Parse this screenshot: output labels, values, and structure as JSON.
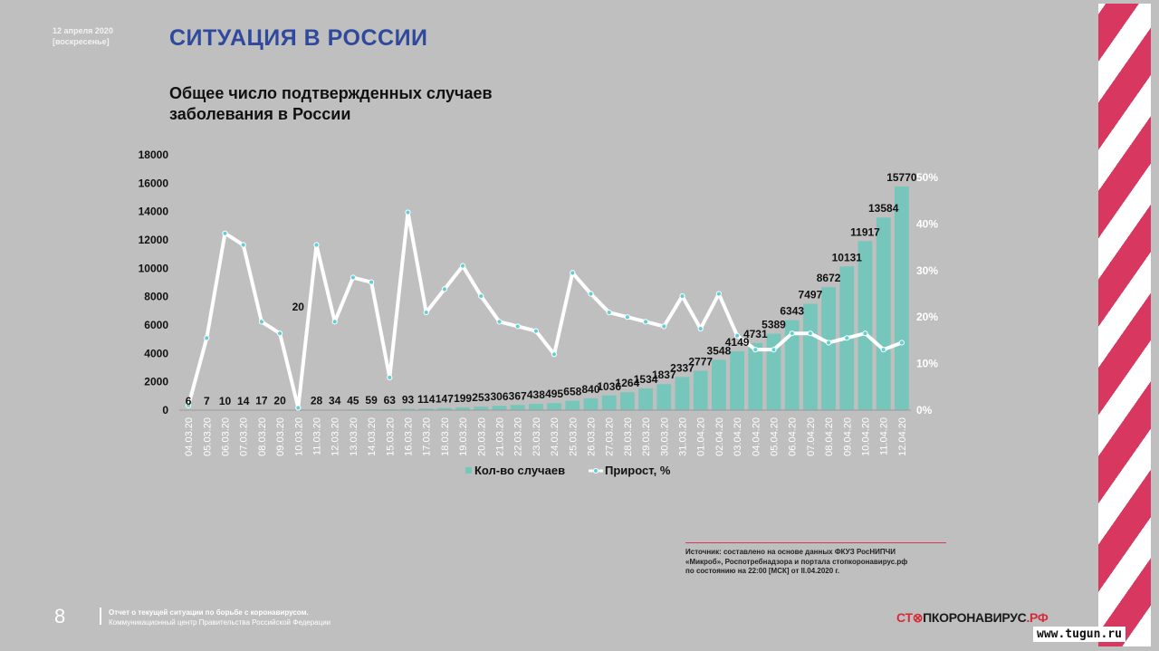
{
  "header": {
    "date_line1": "12 апреля 2020",
    "date_line2": "[воскресенье]",
    "title": "СИТУАЦИЯ В РОССИИ"
  },
  "chart_title_line1": "Общее число подтвержденных случаев",
  "chart_title_line2": "заболевания в России",
  "chart_data": {
    "type": "bar",
    "title": "Общее число подтвержденных случаев заболевания в России",
    "categories": [
      "04.03.20",
      "05.03.20",
      "06.03.20",
      "07.03.20",
      "08.03.20",
      "09.03.20",
      "10.03.20",
      "11.03.20",
      "12.03.20",
      "13.03.20",
      "14.03.20",
      "15.03.20",
      "16.03.20",
      "17.03.20",
      "18.03.20",
      "19.03.20",
      "20.03.20",
      "21.03.20",
      "22.03.20",
      "23.03.20",
      "24.03.20",
      "25.03.20",
      "26.03.20",
      "27.03.20",
      "28.03.20",
      "29.03.20",
      "30.03.20",
      "31.03.20",
      "01.04.20",
      "02.04.20",
      "03.04.20",
      "04.04.20",
      "05.04.20",
      "06.04.20",
      "07.04.20",
      "08.04.20",
      "09.04.20",
      "10.04.20",
      "11.04.20",
      "12.04.20"
    ],
    "series": [
      {
        "name": "Кол-во случаев",
        "type": "bar",
        "axis": "left",
        "color": "#76c6bb",
        "values": [
          6,
          7,
          10,
          14,
          17,
          20,
          20,
          28,
          34,
          45,
          59,
          63,
          93,
          114,
          147,
          199,
          253,
          306,
          367,
          438,
          495,
          658,
          840,
          1036,
          1264,
          1534,
          1837,
          2337,
          2777,
          3548,
          4149,
          4731,
          5389,
          6343,
          7497,
          8672,
          10131,
          11917,
          13584,
          15770
        ],
        "labels": [
          "6",
          "7",
          "10",
          "14",
          "17",
          "20",
          "20",
          "28",
          "34",
          "45",
          "59",
          "63",
          "93",
          "114",
          "147",
          "199",
          "253",
          "306",
          "367",
          "438",
          "495",
          "658",
          "840",
          "1036",
          "1264",
          "1534",
          "1837",
          "2337",
          "2777",
          "3548",
          "4149",
          "4731",
          "5389",
          "6343",
          "7497",
          "8672",
          "10131",
          "11917",
          "13584",
          "15770"
        ]
      },
      {
        "name": "Прирост, %",
        "type": "line",
        "axis": "right",
        "color": "#ffffff",
        "values": [
          1,
          15.5,
          38,
          35.5,
          19,
          16.5,
          0.5,
          35.5,
          19,
          28.5,
          27.5,
          7,
          42.5,
          21,
          26,
          31,
          24.5,
          19,
          18,
          17,
          12,
          29.5,
          25,
          21,
          20,
          19,
          18,
          24.5,
          17.5,
          25,
          16,
          13,
          13,
          16.5,
          16.5,
          14.5,
          15.5,
          16.5,
          13,
          14.5
        ]
      }
    ],
    "y_left": {
      "min": 0,
      "max": 18000,
      "step": 2000,
      "ticks": [
        "0",
        "2000",
        "4000",
        "6000",
        "8000",
        "10000",
        "12000",
        "14000",
        "16000",
        "18000"
      ]
    },
    "y_right": {
      "min": 0,
      "max": 55,
      "ticks": [
        "0%",
        "10%",
        "20%",
        "30%",
        "40%",
        "50%"
      ],
      "tick_values": [
        0,
        10,
        20,
        30,
        40,
        50
      ]
    },
    "legend": {
      "placement": "bottom",
      "items": [
        "Кол-во случаев",
        "Прирост, %"
      ]
    },
    "grid": false
  },
  "source": {
    "line1": "Источник: составлено на основе данных ФКУЗ РосНИПЧИ",
    "line2": "«Микроб», Роспотребнадзора и портала стопкоронавирус.рф",
    "line3": "по состоянию на 22:00 [МСК] от II.04.2020 г."
  },
  "footer": {
    "page_number": "8",
    "line1": "Отчет о текущей ситуации по борьбе с коронавирусом.",
    "line2": "Коммуникационный центр Правительства Российской Федерации"
  },
  "logo": {
    "part1": "СТ",
    "part2": "ПКОРОНАВИРУС",
    "part3": ".РФ"
  },
  "watermark": "www.tugun.ru",
  "colors": {
    "accent": "#d8385f",
    "title_blue": "#2f4a9c",
    "bar": "#76c6bb",
    "background": "#bfbfbf"
  }
}
